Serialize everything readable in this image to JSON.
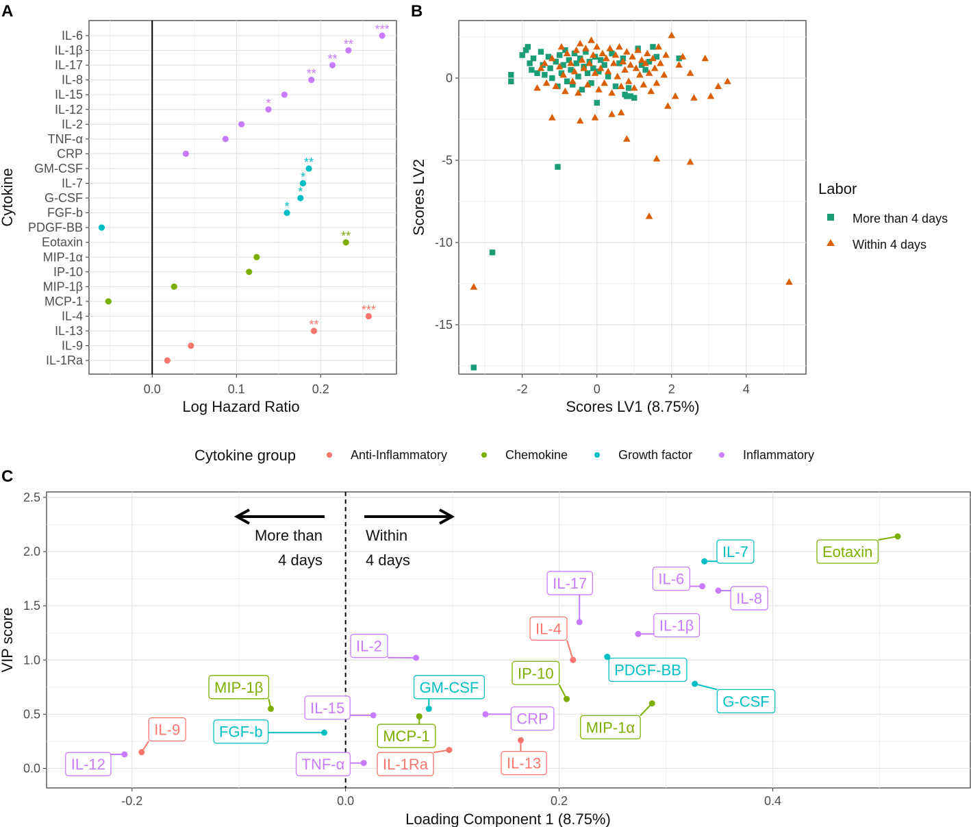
{
  "colors": {
    "Anti-Inflammatory": "#F8766D",
    "Chemokine": "#7CAE00",
    "Growth factor": "#00BFC4",
    "Inflammatory": "#C77CFF",
    "more": "#1B9E77",
    "within": "#D95F02"
  },
  "legend_groups": {
    "title": "Cytokine group",
    "items": [
      {
        "label": "Anti-Inflammatory",
        "group": "Anti-Inflammatory"
      },
      {
        "label": "Chemokine",
        "group": "Chemokine"
      },
      {
        "label": "Growth factor",
        "group": "Growth factor"
      },
      {
        "label": "Inflammatory",
        "group": "Inflammatory"
      }
    ]
  },
  "chart_data": [
    {
      "panel": "A",
      "type": "scatter",
      "title": "",
      "xlabel": "Log Hazard Ratio",
      "ylabel": "Cytokine",
      "xlim": [
        -0.075,
        0.29
      ],
      "xticks": [
        "0.0",
        "0.1",
        "0.2"
      ],
      "xtick_values": [
        0,
        0.1,
        0.2
      ],
      "vline": 0,
      "points": [
        {
          "name": "IL-6",
          "value": 0.273,
          "group": "Inflammatory",
          "sig": "***"
        },
        {
          "name": "IL-1β",
          "value": 0.233,
          "group": "Inflammatory",
          "sig": "**"
        },
        {
          "name": "IL-17",
          "value": 0.214,
          "group": "Inflammatory",
          "sig": "**"
        },
        {
          "name": "IL-8",
          "value": 0.189,
          "group": "Inflammatory",
          "sig": "**"
        },
        {
          "name": "IL-15",
          "value": 0.157,
          "group": "Inflammatory",
          "sig": ""
        },
        {
          "name": "IL-12",
          "value": 0.138,
          "group": "Inflammatory",
          "sig": "*"
        },
        {
          "name": "IL-2",
          "value": 0.106,
          "group": "Inflammatory",
          "sig": ""
        },
        {
          "name": "TNF-α",
          "value": 0.087,
          "group": "Inflammatory",
          "sig": ""
        },
        {
          "name": "CRP",
          "value": 0.04,
          "group": "Inflammatory",
          "sig": ""
        },
        {
          "name": "GM-CSF",
          "value": 0.186,
          "group": "Growth factor",
          "sig": "**"
        },
        {
          "name": "IL-7",
          "value": 0.179,
          "group": "Growth factor",
          "sig": "*"
        },
        {
          "name": "G-CSF",
          "value": 0.176,
          "group": "Growth factor",
          "sig": "*"
        },
        {
          "name": "FGF-b",
          "value": 0.16,
          "group": "Growth factor",
          "sig": "*"
        },
        {
          "name": "PDGF-BB",
          "value": -0.06,
          "group": "Growth factor",
          "sig": ""
        },
        {
          "name": "Eotaxin",
          "value": 0.23,
          "group": "Chemokine",
          "sig": "**"
        },
        {
          "name": "MIP-1α",
          "value": 0.124,
          "group": "Chemokine",
          "sig": ""
        },
        {
          "name": "IP-10",
          "value": 0.115,
          "group": "Chemokine",
          "sig": ""
        },
        {
          "name": "MIP-1β",
          "value": 0.026,
          "group": "Chemokine",
          "sig": ""
        },
        {
          "name": "MCP-1",
          "value": -0.052,
          "group": "Chemokine",
          "sig": ""
        },
        {
          "name": "IL-4",
          "value": 0.257,
          "group": "Anti-Inflammatory",
          "sig": "***"
        },
        {
          "name": "IL-13",
          "value": 0.192,
          "group": "Anti-Inflammatory",
          "sig": "**"
        },
        {
          "name": "IL-9",
          "value": 0.046,
          "group": "Anti-Inflammatory",
          "sig": ""
        },
        {
          "name": "IL-1Ra",
          "value": 0.018,
          "group": "Anti-Inflammatory",
          "sig": ""
        }
      ]
    },
    {
      "panel": "B",
      "type": "scatter",
      "title": "",
      "xlabel": "Scores LV1 (8.75%)",
      "ylabel": "Scores LV2",
      "xlim": [
        -3.7,
        5.6
      ],
      "ylim": [
        -18.0,
        3.5
      ],
      "xticks": [
        "-2",
        "0",
        "2",
        "4"
      ],
      "xtick_values": [
        -2,
        0,
        2,
        4
      ],
      "yticks": [
        "0",
        "-5",
        "-10",
        "-15"
      ],
      "ytick_values": [
        0,
        -5,
        -10,
        -15
      ],
      "legend": {
        "title": "Labor",
        "items": [
          {
            "label": "More than 4 days",
            "key": "more"
          },
          {
            "label": "Within 4 days",
            "key": "within"
          }
        ]
      },
      "series": [
        {
          "name": "More than 4 days",
          "key": "more",
          "marker": "square",
          "points": [
            [
              -2.3,
              0.2
            ],
            [
              -2.3,
              -0.2
            ],
            [
              -2.0,
              1.4
            ],
            [
              -1.9,
              1.7
            ],
            [
              -1.85,
              1.9
            ],
            [
              -1.8,
              0.9
            ],
            [
              -1.75,
              0.5
            ],
            [
              -1.7,
              1.2
            ],
            [
              -1.6,
              0.3
            ],
            [
              -1.5,
              1.6
            ],
            [
              -1.45,
              0.8
            ],
            [
              -1.4,
              0.2
            ],
            [
              -1.3,
              1.3
            ],
            [
              -1.25,
              0.6
            ],
            [
              -1.2,
              0.0
            ],
            [
              -1.1,
              1.0
            ],
            [
              -1.05,
              -0.5
            ],
            [
              -1.0,
              1.4
            ],
            [
              -0.95,
              0.3
            ],
            [
              -0.9,
              0.8
            ],
            [
              -0.85,
              1.7
            ],
            [
              -0.8,
              -0.2
            ],
            [
              -0.75,
              1.1
            ],
            [
              -0.7,
              0.5
            ],
            [
              -0.65,
              -0.4
            ],
            [
              -0.6,
              1.5
            ],
            [
              -0.55,
              0.9
            ],
            [
              -0.5,
              0.1
            ],
            [
              -0.45,
              1.2
            ],
            [
              -0.4,
              -0.7
            ],
            [
              -0.35,
              0.7
            ],
            [
              -0.3,
              1.6
            ],
            [
              -0.25,
              0.3
            ],
            [
              -0.2,
              1.0
            ],
            [
              -0.15,
              -0.3
            ],
            [
              -0.1,
              0.6
            ],
            [
              -0.05,
              1.3
            ],
            [
              0.0,
              -1.5
            ],
            [
              0.05,
              0.4
            ],
            [
              0.1,
              1.1
            ],
            [
              0.2,
              0.8
            ],
            [
              0.3,
              0.1
            ],
            [
              0.4,
              1.5
            ],
            [
              0.5,
              -0.5
            ],
            [
              0.6,
              0.9
            ],
            [
              0.7,
              1.2
            ],
            [
              0.75,
              -1.0
            ],
            [
              0.8,
              -1.1
            ],
            [
              0.85,
              -0.6
            ],
            [
              0.9,
              -1.1
            ],
            [
              1.0,
              -1.2
            ],
            [
              1.1,
              1.8
            ],
            [
              1.2,
              0.8
            ],
            [
              1.3,
              0.5
            ],
            [
              1.4,
              1.0
            ],
            [
              1.5,
              1.9
            ],
            [
              1.6,
              1.3
            ],
            [
              2.2,
              1.2
            ],
            [
              -1.05,
              -5.4
            ],
            [
              -2.8,
              -10.6
            ],
            [
              -3.3,
              -17.6
            ]
          ]
        },
        {
          "name": "Within 4 days",
          "key": "within",
          "marker": "triangle",
          "points": [
            [
              -1.6,
              -0.6
            ],
            [
              -1.5,
              0.6
            ],
            [
              -1.4,
              0.9
            ],
            [
              -1.35,
              -0.3
            ],
            [
              -1.2,
              1.2
            ],
            [
              -1.1,
              -0.5
            ],
            [
              -1.0,
              0.7
            ],
            [
              -0.95,
              1.9
            ],
            [
              -0.9,
              0.2
            ],
            [
              -0.85,
              -0.8
            ],
            [
              -0.8,
              1.5
            ],
            [
              -0.7,
              0.9
            ],
            [
              -0.65,
              -0.2
            ],
            [
              -0.6,
              0.4
            ],
            [
              -0.55,
              1.7
            ],
            [
              -0.5,
              -0.9
            ],
            [
              -0.45,
              2.1
            ],
            [
              -0.4,
              1.1
            ],
            [
              -0.35,
              0.6
            ],
            [
              -0.3,
              1.8
            ],
            [
              -0.25,
              -0.4
            ],
            [
              -0.2,
              0.9
            ],
            [
              -0.15,
              2.3
            ],
            [
              -0.1,
              1.4
            ],
            [
              -0.05,
              0.3
            ],
            [
              0.0,
              1.9
            ],
            [
              0.05,
              -0.7
            ],
            [
              0.1,
              0.6
            ],
            [
              0.15,
              1.5
            ],
            [
              0.2,
              -0.3
            ],
            [
              0.25,
              1.2
            ],
            [
              0.3,
              0.4
            ],
            [
              0.35,
              1.8
            ],
            [
              0.4,
              -0.9
            ],
            [
              0.45,
              0.9
            ],
            [
              0.5,
              1.4
            ],
            [
              0.55,
              0.1
            ],
            [
              0.6,
              1.9
            ],
            [
              0.65,
              -0.5
            ],
            [
              0.7,
              1.0
            ],
            [
              0.75,
              0.5
            ],
            [
              0.8,
              1.6
            ],
            [
              0.85,
              -0.2
            ],
            [
              0.9,
              0.8
            ],
            [
              0.95,
              1.3
            ],
            [
              1.0,
              -0.6
            ],
            [
              1.05,
              0.6
            ],
            [
              1.1,
              1.7
            ],
            [
              1.15,
              0.2
            ],
            [
              1.2,
              1.1
            ],
            [
              1.25,
              -0.4
            ],
            [
              1.3,
              0.9
            ],
            [
              1.35,
              1.5
            ],
            [
              1.4,
              0.3
            ],
            [
              1.45,
              -0.8
            ],
            [
              1.5,
              1.2
            ],
            [
              1.55,
              0.6
            ],
            [
              1.6,
              -0.3
            ],
            [
              1.65,
              1.9
            ],
            [
              1.7,
              0.9
            ],
            [
              1.8,
              0.2
            ],
            [
              1.85,
              1.4
            ],
            [
              1.9,
              -1.7
            ],
            [
              2.0,
              2.6
            ],
            [
              2.1,
              -1.1
            ],
            [
              2.2,
              0.8
            ],
            [
              2.3,
              1.3
            ],
            [
              2.5,
              0.3
            ],
            [
              2.6,
              -1.2
            ],
            [
              2.9,
              1.2
            ],
            [
              3.05,
              -1.1
            ],
            [
              3.25,
              -0.5
            ],
            [
              3.5,
              -0.2
            ],
            [
              -1.2,
              -2.4
            ],
            [
              -0.45,
              -2.6
            ],
            [
              -0.05,
              -2.4
            ],
            [
              0.4,
              -2.2
            ],
            [
              0.65,
              -2.1
            ],
            [
              0.8,
              -3.7
            ],
            [
              1.6,
              -4.9
            ],
            [
              2.5,
              -5.1
            ],
            [
              1.4,
              -8.4
            ],
            [
              -3.3,
              -12.7
            ],
            [
              5.15,
              -12.4
            ]
          ]
        }
      ]
    },
    {
      "panel": "C",
      "type": "scatter",
      "title": "",
      "xlabel": "Loading Component 1 (8.75%)",
      "ylabel": "VIP score",
      "xlim": [
        -0.28,
        0.585
      ],
      "ylim": [
        -0.18,
        2.55
      ],
      "xticks": [
        "-0.2",
        "0.0",
        "0.2",
        "0.4"
      ],
      "xtick_values": [
        -0.2,
        0,
        0.2,
        0.4
      ],
      "yticks": [
        "0.0",
        "0.5",
        "1.0",
        "1.5",
        "2.0",
        "2.5"
      ],
      "ytick_values": [
        0,
        0.5,
        1.0,
        1.5,
        2.0,
        2.5
      ],
      "vline": 0,
      "annotations": {
        "left_line1": "More than",
        "left_line2": "4 days",
        "right_line1": "Within",
        "right_line2": "4 days"
      },
      "points": [
        {
          "name": "Eotaxin",
          "x": 0.517,
          "y": 2.14,
          "group": "Chemokine",
          "lx": 0.47,
          "ly": 2.0
        },
        {
          "name": "IL-7",
          "x": 0.336,
          "y": 1.91,
          "group": "Growth factor",
          "lx": 0.365,
          "ly": 2.0
        },
        {
          "name": "IL-6",
          "x": 0.334,
          "y": 1.68,
          "group": "Inflammatory",
          "lx": 0.305,
          "ly": 1.75
        },
        {
          "name": "IL-8",
          "x": 0.349,
          "y": 1.64,
          "group": "Inflammatory",
          "lx": 0.378,
          "ly": 1.57
        },
        {
          "name": "IL-17",
          "x": 0.219,
          "y": 1.35,
          "group": "Inflammatory",
          "lx": 0.21,
          "ly": 1.71
        },
        {
          "name": "IL-1β",
          "x": 0.274,
          "y": 1.24,
          "group": "Inflammatory",
          "lx": 0.31,
          "ly": 1.32
        },
        {
          "name": "IL-4",
          "x": 0.213,
          "y": 1.0,
          "group": "Anti-Inflammatory",
          "lx": 0.19,
          "ly": 1.29
        },
        {
          "name": "PDGF-BB",
          "x": 0.245,
          "y": 1.03,
          "group": "Growth factor",
          "lx": 0.283,
          "ly": 0.91
        },
        {
          "name": "IL-2",
          "x": 0.066,
          "y": 1.02,
          "group": "Inflammatory",
          "lx": 0.022,
          "ly": 1.13
        },
        {
          "name": "IP-10",
          "x": 0.207,
          "y": 0.64,
          "group": "Chemokine",
          "lx": 0.178,
          "ly": 0.88
        },
        {
          "name": "G-CSF",
          "x": 0.327,
          "y": 0.78,
          "group": "Growth factor",
          "lx": 0.375,
          "ly": 0.62
        },
        {
          "name": "MIP-1β",
          "x": -0.07,
          "y": 0.55,
          "group": "Chemokine",
          "lx": -0.1,
          "ly": 0.75
        },
        {
          "name": "GM-CSF",
          "x": 0.078,
          "y": 0.55,
          "group": "Growth factor",
          "lx": 0.097,
          "ly": 0.75
        },
        {
          "name": "MIP-1α",
          "x": 0.287,
          "y": 0.6,
          "group": "Chemokine",
          "lx": 0.248,
          "ly": 0.38
        },
        {
          "name": "IL-15",
          "x": 0.026,
          "y": 0.49,
          "group": "Inflammatory",
          "lx": -0.017,
          "ly": 0.56
        },
        {
          "name": "MCP-1",
          "x": 0.069,
          "y": 0.48,
          "group": "Chemokine",
          "lx": 0.057,
          "ly": 0.3
        },
        {
          "name": "CRP",
          "x": 0.131,
          "y": 0.5,
          "group": "Inflammatory",
          "lx": 0.175,
          "ly": 0.46
        },
        {
          "name": "FGF-b",
          "x": -0.02,
          "y": 0.33,
          "group": "Growth factor",
          "lx": -0.098,
          "ly": 0.34
        },
        {
          "name": "IL-9",
          "x": -0.191,
          "y": 0.15,
          "group": "Anti-Inflammatory",
          "lx": -0.167,
          "ly": 0.36
        },
        {
          "name": "IL-12",
          "x": -0.207,
          "y": 0.13,
          "group": "Inflammatory",
          "lx": -0.241,
          "ly": 0.04
        },
        {
          "name": "TNF-α",
          "x": 0.017,
          "y": 0.05,
          "group": "Inflammatory",
          "lx": -0.021,
          "ly": 0.04
        },
        {
          "name": "IL-1Ra",
          "x": 0.097,
          "y": 0.17,
          "group": "Anti-Inflammatory",
          "lx": 0.056,
          "ly": 0.04
        },
        {
          "name": "IL-13",
          "x": 0.164,
          "y": 0.26,
          "group": "Anti-Inflammatory",
          "lx": 0.167,
          "ly": 0.05
        }
      ]
    }
  ],
  "panel_labels": {
    "a": "A",
    "b": "B",
    "c": "C"
  }
}
